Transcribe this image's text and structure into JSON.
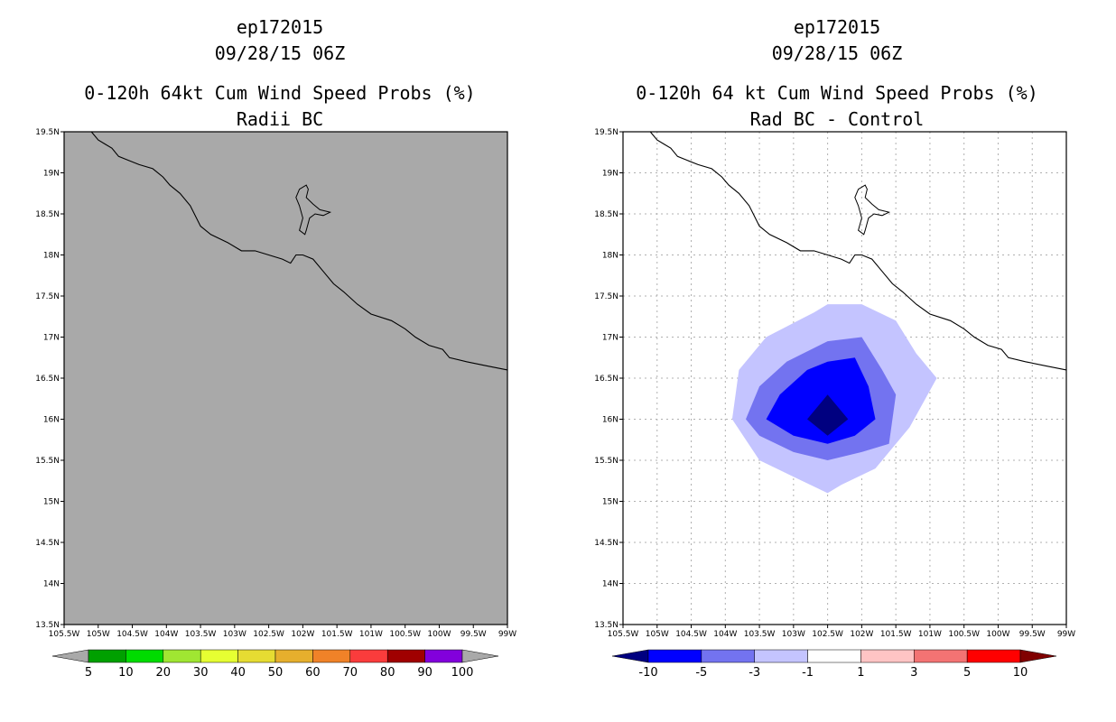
{
  "left_panel": {
    "title_lines": [
      "ep172015",
      "09/28/15 06Z",
      "0-120h 64kt Cum Wind Speed Probs (%)",
      "Radii BC"
    ]
  },
  "right_panel": {
    "title_lines": [
      "ep172015",
      "09/28/15 06Z",
      "0-120h 64 kt Cum Wind Speed Probs (%)",
      "Rad BC - Control"
    ]
  },
  "axes": {
    "x_ticks": [
      "105.5W",
      "105W",
      "104.5W",
      "104W",
      "103.5W",
      "103W",
      "102.5W",
      "102W",
      "101.5W",
      "101W",
      "100.5W",
      "100W",
      "99.5W",
      "99W"
    ],
    "y_ticks": [
      "19.5N",
      "19N",
      "18.5N",
      "18N",
      "17.5N",
      "17N",
      "16.5N",
      "16N",
      "15.5N",
      "15N",
      "14.5N",
      "14N",
      "13.5N"
    ],
    "xlim": [
      -105.5,
      -99.0
    ],
    "ylim": [
      13.5,
      19.5
    ]
  },
  "colors": {
    "land_fill": "#a9a9a9",
    "coast": "#000000",
    "grid": "#b0b0b0"
  },
  "left_colorbar": {
    "labels": [
      "5",
      "10",
      "20",
      "30",
      "40",
      "50",
      "60",
      "70",
      "80",
      "90",
      "100"
    ],
    "colors": [
      "#00a000",
      "#00dc00",
      "#a0e632",
      "#e6ff32",
      "#e6dc32",
      "#e6af2d",
      "#f08228",
      "#fa3c3c",
      "#a00000",
      "#8200dc"
    ],
    "end_color": "#a9a9a9"
  },
  "right_colorbar": {
    "labels": [
      "-10",
      "-5",
      "-3",
      "-1",
      "1",
      "3",
      "5",
      "10"
    ],
    "colors": [
      "#0000ff",
      "#7373f0",
      "#c4c4ff",
      "#ffffff",
      "#ffc4c4",
      "#f37373",
      "#ff0000"
    ],
    "low_end_color": "#000080",
    "high_end_color": "#800000"
  },
  "chart_data": [
    {
      "type": "heatmap",
      "title": "0-120h 64kt Cum Wind Speed Probs (%) Radii BC",
      "xlim": [
        -105.5,
        -99.0
      ],
      "ylim": [
        13.5,
        19.5
      ],
      "values_description": "uniform below 5% across domain (gray fill)",
      "fill": "#a9a9a9"
    },
    {
      "type": "heatmap",
      "title": "0-120h 64 kt Cum Wind Speed Probs (%) Rad BC - Control",
      "xlim": [
        -105.5,
        -99.0
      ],
      "ylim": [
        13.5,
        19.5
      ],
      "center": [
        -102.5,
        16.0
      ],
      "contours": [
        {
          "level": "-1 to -3",
          "color": "#c4c4ff",
          "points": [
            [
              -102.0,
              17.4
            ],
            [
              -101.5,
              17.2
            ],
            [
              -101.2,
              16.8
            ],
            [
              -100.9,
              16.5
            ],
            [
              -101.3,
              15.9
            ],
            [
              -101.8,
              15.4
            ],
            [
              -102.3,
              15.2
            ],
            [
              -102.5,
              15.1
            ],
            [
              -103.0,
              15.3
            ],
            [
              -103.5,
              15.5
            ],
            [
              -103.9,
              16.0
            ],
            [
              -103.8,
              16.6
            ],
            [
              -103.4,
              17.0
            ],
            [
              -102.7,
              17.3
            ],
            [
              -102.5,
              17.4
            ]
          ]
        },
        {
          "level": "-3 to -5",
          "color": "#7373f0",
          "points": [
            [
              -102.0,
              17.0
            ],
            [
              -101.7,
              16.6
            ],
            [
              -101.5,
              16.3
            ],
            [
              -101.6,
              15.7
            ],
            [
              -102.0,
              15.6
            ],
            [
              -102.5,
              15.5
            ],
            [
              -103.0,
              15.6
            ],
            [
              -103.5,
              15.8
            ],
            [
              -103.7,
              16.0
            ],
            [
              -103.5,
              16.4
            ],
            [
              -103.1,
              16.7
            ],
            [
              -102.5,
              16.95
            ]
          ]
        },
        {
          "level": "-5 to -10",
          "color": "#0000ff",
          "points": [
            [
              -102.1,
              16.75
            ],
            [
              -101.9,
              16.4
            ],
            [
              -101.8,
              16.0
            ],
            [
              -102.1,
              15.8
            ],
            [
              -102.5,
              15.7
            ],
            [
              -103.0,
              15.8
            ],
            [
              -103.4,
              16.0
            ],
            [
              -103.2,
              16.3
            ],
            [
              -102.8,
              16.6
            ],
            [
              -102.5,
              16.7
            ]
          ]
        },
        {
          "level": "< -10",
          "color": "#000080",
          "points": [
            [
              -102.5,
              16.3
            ],
            [
              -102.2,
              16.0
            ],
            [
              -102.5,
              15.8
            ],
            [
              -102.8,
              16.0
            ]
          ]
        }
      ]
    }
  ]
}
